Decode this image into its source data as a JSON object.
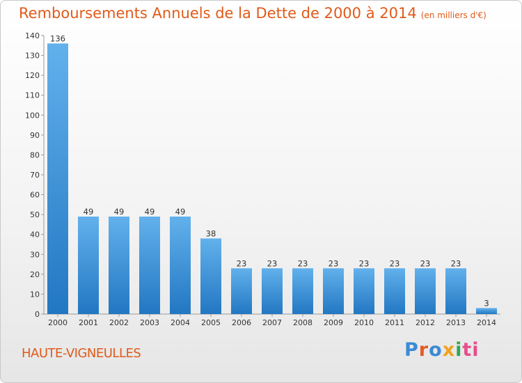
{
  "header": {
    "title": "Remboursements Annuels de la Dette de 2000 à 2014",
    "unit": "(en milliers d'€)"
  },
  "footer": {
    "commune": "HAUTE-VIGNEULLES",
    "logo": [
      "P",
      "r",
      "o",
      "x",
      "i",
      "ti"
    ]
  },
  "colors": {
    "bar_top": "#62b1ec",
    "bar_bottom": "#2277c2",
    "title": "#e05a1a"
  },
  "chart_data": {
    "type": "bar",
    "title": "Remboursements Annuels de la Dette de 2000 à 2014",
    "xlabel": "",
    "ylabel": "",
    "categories": [
      "2000",
      "2001",
      "2002",
      "2003",
      "2004",
      "2005",
      "2006",
      "2007",
      "2008",
      "2009",
      "2010",
      "2011",
      "2012",
      "2013",
      "2014"
    ],
    "values": [
      136,
      49,
      49,
      49,
      49,
      38,
      23,
      23,
      23,
      23,
      23,
      23,
      23,
      23,
      3
    ],
    "ylim": [
      0,
      140
    ],
    "yticks": [
      0,
      10,
      20,
      30,
      40,
      50,
      60,
      70,
      80,
      90,
      100,
      110,
      120,
      130,
      140
    ],
    "grid": false,
    "data_labels": true
  }
}
